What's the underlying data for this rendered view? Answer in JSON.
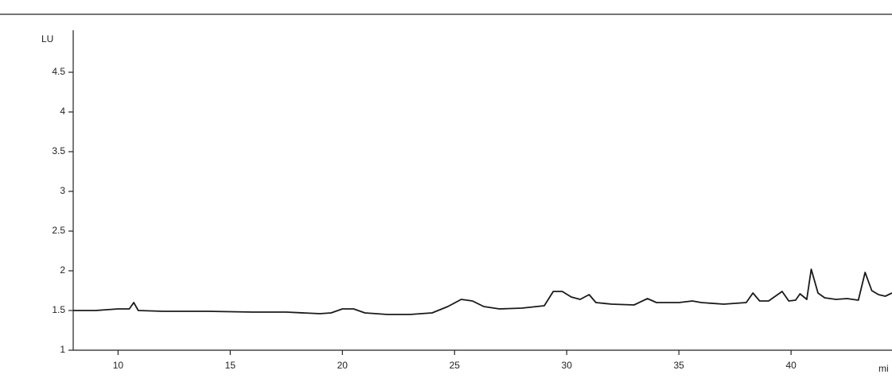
{
  "chart_data": {
    "type": "line",
    "y_label": "LU",
    "x_label": "mi",
    "xlim": [
      8,
      44.5
    ],
    "xticks": [
      10,
      15,
      20,
      25,
      30,
      35,
      40
    ],
    "ylim": [
      1,
      5
    ],
    "yticks": [
      1,
      1.5,
      2,
      2.5,
      3,
      3.5,
      4,
      4.5
    ],
    "color": "#1a1a1a",
    "x": [
      8,
      9,
      9.5,
      10,
      10.5,
      10.7,
      10.9,
      12,
      14,
      16,
      17.5,
      19,
      19.5,
      20,
      20.5,
      21,
      22,
      23,
      24,
      24.7,
      25.3,
      25.8,
      26.3,
      27,
      28,
      29,
      29.4,
      29.8,
      30.2,
      30.6,
      31,
      31.3,
      32,
      33,
      33.6,
      34,
      35,
      35.6,
      36,
      37,
      38,
      38.3,
      38.6,
      39,
      39.6,
      39.9,
      40.2,
      40.4,
      40.7,
      40.9,
      41.2,
      41.5,
      42,
      42.5,
      43,
      43.3,
      43.6,
      43.9,
      44.2,
      44.5
    ],
    "values": [
      1.5,
      1.5,
      1.51,
      1.52,
      1.52,
      1.6,
      1.5,
      1.49,
      1.49,
      1.48,
      1.48,
      1.46,
      1.47,
      1.52,
      1.52,
      1.47,
      1.45,
      1.45,
      1.47,
      1.55,
      1.64,
      1.62,
      1.55,
      1.52,
      1.53,
      1.56,
      1.74,
      1.74,
      1.67,
      1.64,
      1.7,
      1.6,
      1.58,
      1.57,
      1.65,
      1.6,
      1.6,
      1.62,
      1.6,
      1.58,
      1.6,
      1.72,
      1.62,
      1.62,
      1.74,
      1.62,
      1.63,
      1.71,
      1.64,
      2.02,
      1.72,
      1.66,
      1.64,
      1.65,
      1.63,
      1.98,
      1.75,
      1.7,
      1.68,
      1.72
    ]
  }
}
